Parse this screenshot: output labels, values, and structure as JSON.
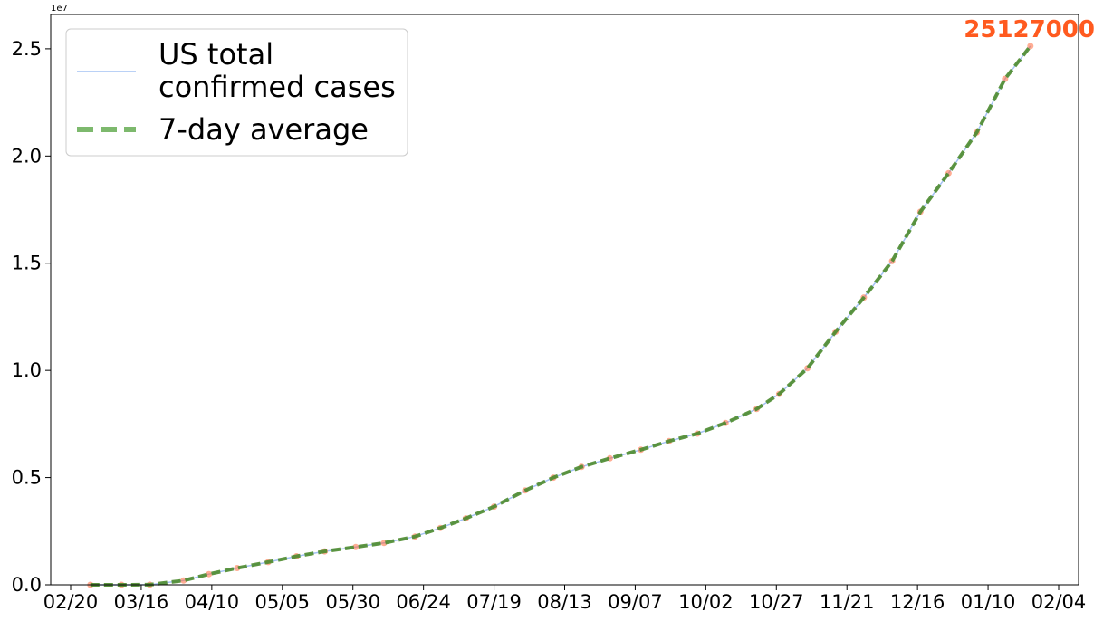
{
  "chart_data": {
    "type": "line",
    "title": "",
    "xlabel": "",
    "ylabel": "",
    "y_exponent_label": "1e7",
    "x_start": "02/20",
    "x_end": "02/04",
    "x_tick_labels": [
      "02/20",
      "03/16",
      "04/10",
      "05/05",
      "05/30",
      "06/24",
      "07/19",
      "08/13",
      "09/07",
      "10/02",
      "10/27",
      "11/21",
      "12/16",
      "01/10",
      "02/04"
    ],
    "y_ticks": [
      0.0,
      0.5,
      1.0,
      1.5,
      2.0,
      2.5
    ],
    "y_tick_labels": [
      "0.0",
      "0.5",
      "1.0",
      "1.5",
      "2.0",
      "2.5"
    ],
    "ylim": [
      0,
      26600000
    ],
    "grid": false,
    "legend_position": "upper-left",
    "series": [
      {
        "name": "US total confirmed cases",
        "legend_lines": [
          "US total",
          "confirmed cases"
        ],
        "color": "#a4c2f4",
        "style": "solid",
        "with_markers": true,
        "marker_color": "#ff6a3d",
        "x": [
          "02/27",
          "03/09",
          "03/19",
          "03/31",
          "04/09",
          "04/19",
          "04/30",
          "05/10",
          "05/20",
          "05/31",
          "06/10",
          "06/21",
          "06/30",
          "07/09",
          "07/19",
          "07/30",
          "08/09",
          "08/19",
          "08/29",
          "09/09",
          "09/19",
          "09/29",
          "10/09",
          "10/20",
          "10/28",
          "11/07",
          "11/17",
          "11/27",
          "12/07",
          "12/17",
          "12/27",
          "01/06",
          "01/16",
          "01/25"
        ],
        "values": [
          0,
          0,
          5000,
          200000,
          500000,
          780000,
          1060000,
          1330000,
          1560000,
          1760000,
          1950000,
          2250000,
          2650000,
          3100000,
          3650000,
          4400000,
          5000000,
          5500000,
          5900000,
          6300000,
          6700000,
          7050000,
          7550000,
          8200000,
          8900000,
          10100000,
          11800000,
          13400000,
          15100000,
          17400000,
          19200000,
          21100000,
          23600000,
          25127000
        ]
      },
      {
        "name": "7-day average",
        "legend_lines": [
          "7-day average"
        ],
        "color": "#4d8b2e",
        "legend_color": "#7db96d",
        "style": "dashed",
        "x": [
          "02/27",
          "03/09",
          "03/19",
          "03/31",
          "04/09",
          "04/19",
          "04/30",
          "05/10",
          "05/20",
          "05/31",
          "06/10",
          "06/21",
          "06/30",
          "07/09",
          "07/19",
          "07/30",
          "08/09",
          "08/19",
          "08/29",
          "09/09",
          "09/19",
          "09/29",
          "10/09",
          "10/20",
          "10/28",
          "11/07",
          "11/17",
          "11/27",
          "12/07",
          "12/17",
          "12/27",
          "01/06",
          "01/16",
          "01/25"
        ],
        "values": [
          0,
          0,
          5000,
          200000,
          500000,
          780000,
          1060000,
          1330000,
          1560000,
          1760000,
          1950000,
          2250000,
          2650000,
          3100000,
          3650000,
          4400000,
          5000000,
          5500000,
          5900000,
          6300000,
          6700000,
          7050000,
          7550000,
          8200000,
          8900000,
          10100000,
          11800000,
          13400000,
          15100000,
          17400000,
          19200000,
          21100000,
          23600000,
          25127000
        ]
      }
    ],
    "annotation": {
      "text": "25127000",
      "color": "#ff5a1f"
    }
  }
}
